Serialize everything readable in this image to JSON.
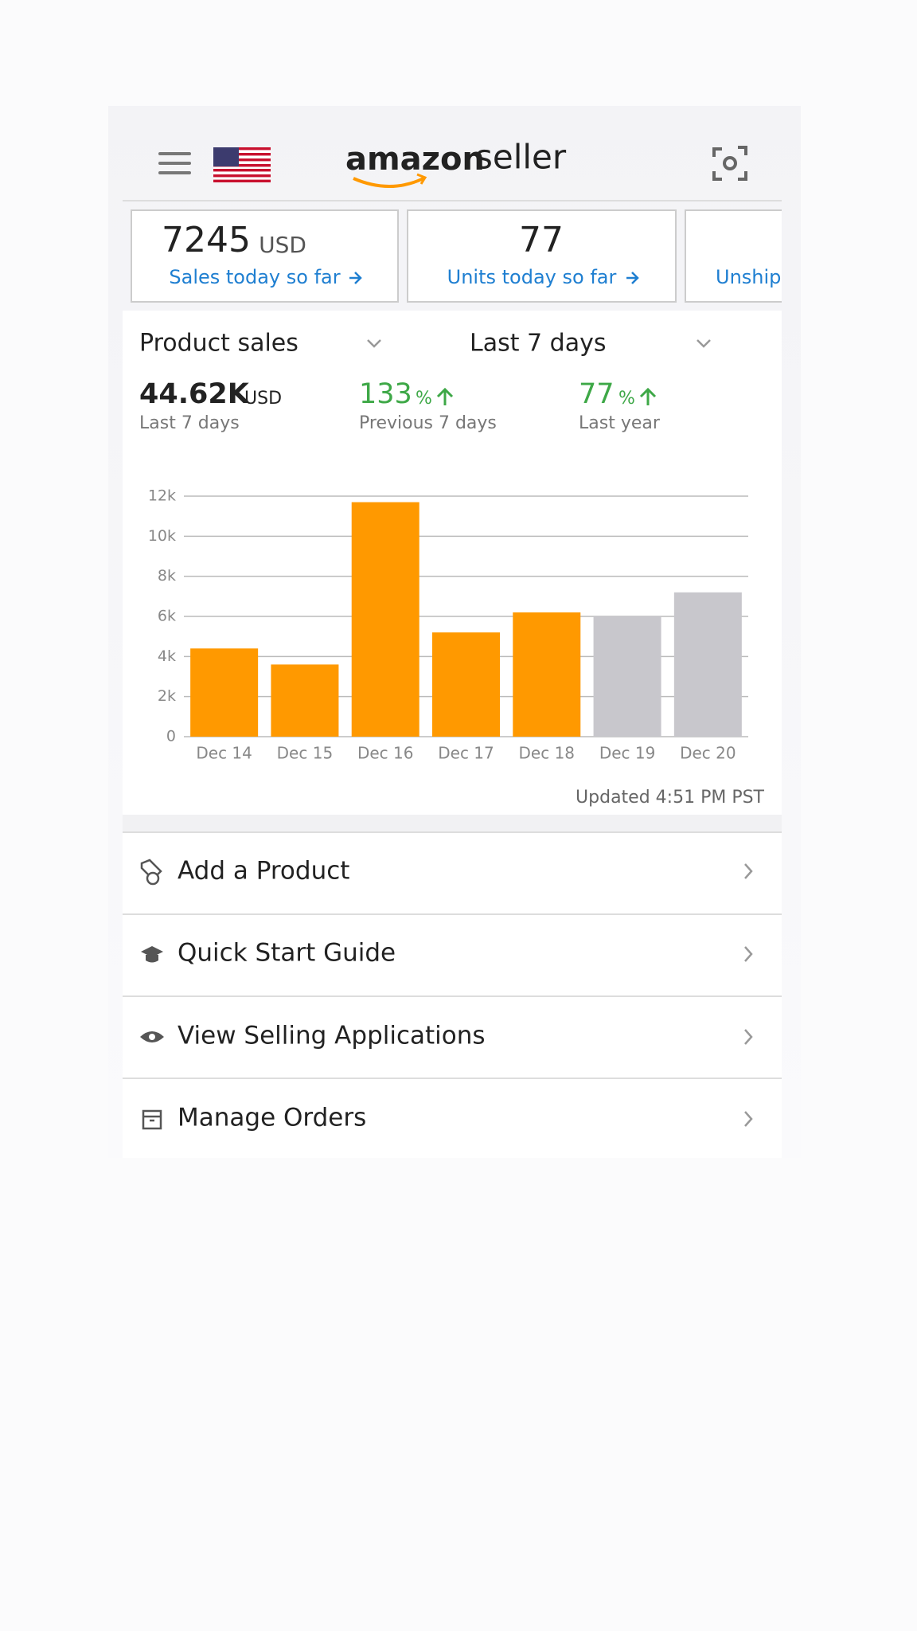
{
  "header": {
    "logo_bold": "amazon",
    "logo_light": "seller"
  },
  "cards": [
    {
      "value": "7245",
      "unit": "USD",
      "label": "Sales today so far"
    },
    {
      "value": "77",
      "label": "Units today so far"
    },
    {
      "label": "Unship"
    }
  ],
  "filters": {
    "metric": "Product sales",
    "period": "Last 7 days"
  },
  "summary": [
    {
      "value": "44.62K",
      "unit": "USD",
      "label": "Last 7 days"
    },
    {
      "value": "133",
      "unit": "%",
      "label": "Previous 7 days"
    },
    {
      "value": "77",
      "unit": "%",
      "label": "Last year"
    }
  ],
  "chart_data": {
    "type": "bar",
    "categories": [
      "Dec 14",
      "Dec 15",
      "Dec 16",
      "Dec 17",
      "Dec 18",
      "Dec 19",
      "Dec 20"
    ],
    "values": [
      4400,
      3600,
      11700,
      5200,
      6200,
      6000,
      7200
    ],
    "colors": [
      "#ff9900",
      "#ff9900",
      "#ff9900",
      "#ff9900",
      "#ff9900",
      "#c8c7cc",
      "#c8c7cc"
    ],
    "ylim": [
      0,
      12000
    ],
    "yticks": [
      0,
      {
        "value": 2000,
        "label": "2k"
      },
      {
        "value": 4000,
        "label": "4k"
      },
      {
        "value": 6000,
        "label": "6k"
      },
      {
        "value": 8000,
        "label": "8k"
      },
      {
        "value": 10000,
        "label": "10k"
      },
      {
        "value": 12000,
        "label": "12k"
      }
    ],
    "grid": true
  },
  "updated": "Updated 4:51 PM PST",
  "menu": [
    {
      "label": "Add a Product"
    },
    {
      "label": "Quick Start Guide"
    },
    {
      "label": "View Selling Applications"
    },
    {
      "label": "Manage Orders"
    }
  ]
}
